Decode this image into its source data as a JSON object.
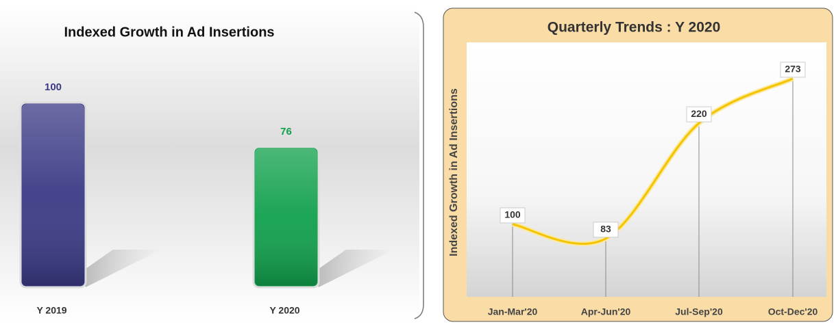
{
  "chart_data": [
    {
      "type": "bar",
      "title": "Indexed Growth in Ad Insertions",
      "categories": [
        "Y 2019",
        "Y 2020"
      ],
      "values": [
        100,
        76
      ],
      "colors": [
        "#3b3a86",
        "#10a04c"
      ]
    },
    {
      "type": "line",
      "title": "Quarterly Trends : Y 2020",
      "y_label": "Indexed Growth in Ad Insertions",
      "categories": [
        "Jan-Mar'20",
        "Apr-Jun'20",
        "Jul-Sep'20",
        "Oct-Dec'20"
      ],
      "values": [
        100,
        83,
        220,
        273
      ],
      "color": "#f5c400"
    }
  ]
}
